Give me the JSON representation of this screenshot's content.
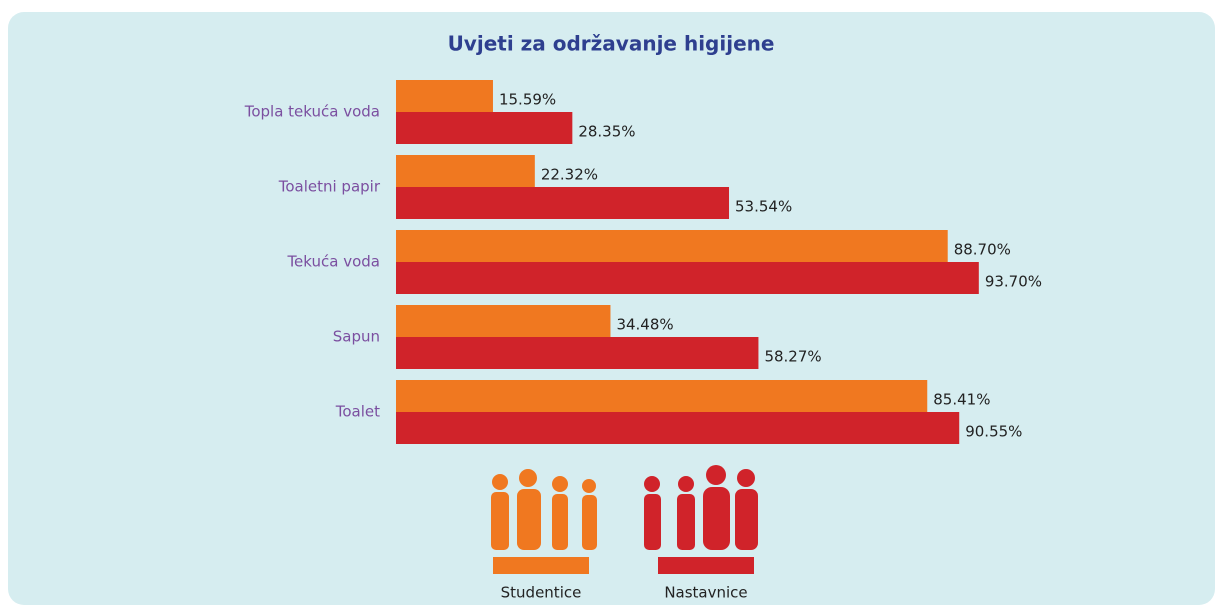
{
  "chart_data": {
    "type": "bar",
    "orientation": "horizontal",
    "title": "Uvjeti za održavanje higijene",
    "categories": [
      "Topla tekuća voda",
      "Toaletni papir",
      "Tekuća voda",
      "Sapun",
      "Toalet"
    ],
    "series": [
      {
        "name": "Studentice",
        "color": "#f07820",
        "values": [
          15.59,
          22.32,
          88.7,
          34.48,
          85.41
        ],
        "value_labels": [
          "15.59%",
          "22.32%",
          "88.70%",
          "34.48%",
          "85.41%"
        ]
      },
      {
        "name": "Nastavnice",
        "color": "#d0232a",
        "values": [
          28.35,
          53.54,
          93.7,
          58.27,
          90.55
        ],
        "value_labels": [
          "28.35%",
          "53.54%",
          "93.70%",
          "58.27%",
          "90.55%"
        ]
      }
    ],
    "legend": "bottom"
  }
}
